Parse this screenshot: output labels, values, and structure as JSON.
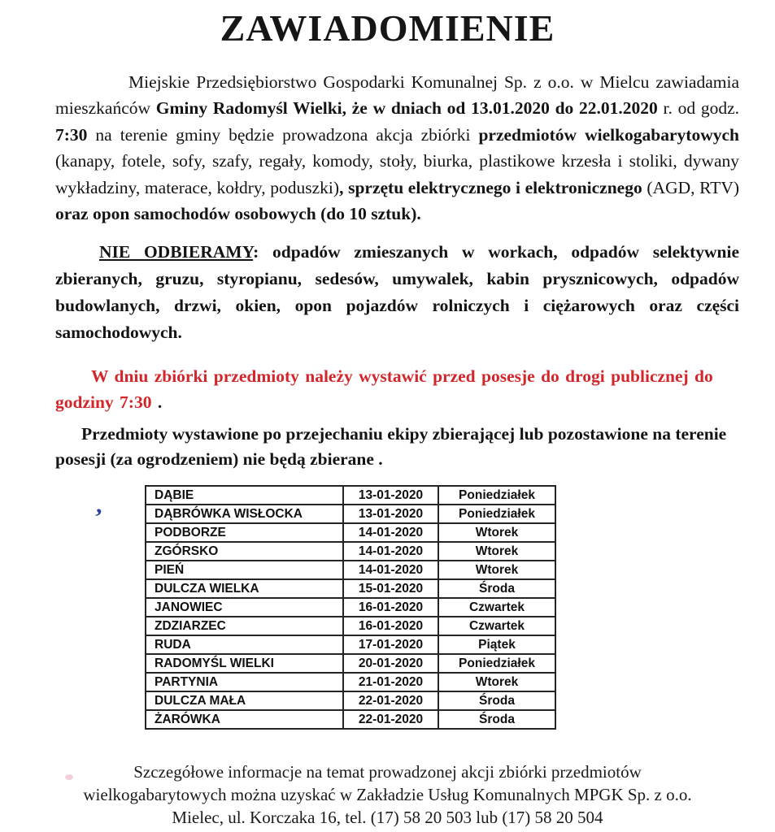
{
  "notice": {
    "title": "ZAWIADOMIENIE",
    "colors": {
      "warning_red": "#d2262b",
      "text_black": "#141414",
      "pen_mark_blue": "#2b3f9e",
      "artifact_pink": "#f0c3d4"
    },
    "intro": {
      "segments": [
        {
          "t": "Miejskie Przedsiębiorstwo Gospodarki Komunalnej Sp. z o.o. w Mielcu zawiadamia mieszkańców "
        },
        {
          "t": "Gminy Radomyśl Wielki, że w dniach od 13.01.2020 do 22.01.2020",
          "b": true
        },
        {
          "t": " r. od godz. "
        },
        {
          "t": "7:30",
          "b": true
        },
        {
          "t": " na terenie gminy będzie prowadzona akcja zbiórki "
        },
        {
          "t": "przedmiotów wielkogabarytowych",
          "b": true
        },
        {
          "t": " (kanapy, fotele, sofy, szafy, regały, komody, stoły, biurka, plastikowe krzesła i stoliki, dywany wykładziny, materace, kołdry, poduszki)"
        },
        {
          "t": ", sprzętu elektrycznego i elektronicznego",
          "b": true
        },
        {
          "t": " (AGD, RTV) "
        },
        {
          "t": "oraz opon samochodów osobowych (do 10 sztuk).",
          "b": true
        }
      ]
    },
    "not_collected": {
      "segments": [
        {
          "t": "NIE ODBIERAMY",
          "b": true,
          "u": true
        },
        {
          "t": ": odpadów zmieszanych w workach, odpadów selektywnie zbieranych, gruzu, styropianu, sedesów, umywalek, kabin prysznicowych, odpadów budowlanych, drzwi, okien, opon pojazdów rolniczych i ciężarowych oraz części samochodowych.",
          "b": true
        }
      ]
    },
    "warning": {
      "segments": [
        {
          "t": "W dniu zbiórki przedmioty należy wystawić przed posesje do drogi publicznej do godziny 7:30 ",
          "b": true,
          "c": "#d2262b"
        },
        {
          "t": ".",
          "b": true
        }
      ]
    },
    "note": {
      "segments": [
        {
          "t": "Przedmioty wystawione po przejechaniu ekipy zbierającej lub pozostawione na terenie posesji (za ogrodzeniem) nie będą zbierane .",
          "b": true
        }
      ]
    },
    "schedule": {
      "rows": [
        [
          "DĄBIE",
          "13-01-2020",
          "Poniedziałek"
        ],
        [
          "DĄBRÓWKA WISŁOCKA",
          "13-01-2020",
          "Poniedziałek"
        ],
        [
          "PODBORZE",
          "14-01-2020",
          "Wtorek"
        ],
        [
          "ZGÓRSKO",
          "14-01-2020",
          "Wtorek"
        ],
        [
          "PIEŃ",
          "14-01-2020",
          "Wtorek"
        ],
        [
          "DULCZA WIELKA",
          "15-01-2020",
          "Środa"
        ],
        [
          "JANOWIEC",
          "16-01-2020",
          "Czwartek"
        ],
        [
          "ZDZIARZEC",
          "16-01-2020",
          "Czwartek"
        ],
        [
          "RUDA",
          "17-01-2020",
          "Piątek"
        ],
        [
          "RADOMYŚL WIELKI",
          "20-01-2020",
          "Poniedziałek"
        ],
        [
          "PARTYNIA",
          "21-01-2020",
          "Wtorek"
        ],
        [
          "DULCZA MAŁA",
          "22-01-2020",
          "Środa"
        ],
        [
          "ŻARÓWKA",
          "22-01-2020",
          "Środa"
        ]
      ]
    },
    "footer_lines": [
      "Szczegółowe informacje na temat prowadzonej akcji zbiórki przedmiotów",
      "wielkogabarytowych można uzyskać w Zakładzie Usług Komunalnych MPGK Sp. z o.o.",
      "Mielec, ul. Korczaka 16, tel. (17) 58 20 503 lub (17) 58 20 504"
    ],
    "artifacts": {
      "pen_mark_glyph": ","
    }
  }
}
